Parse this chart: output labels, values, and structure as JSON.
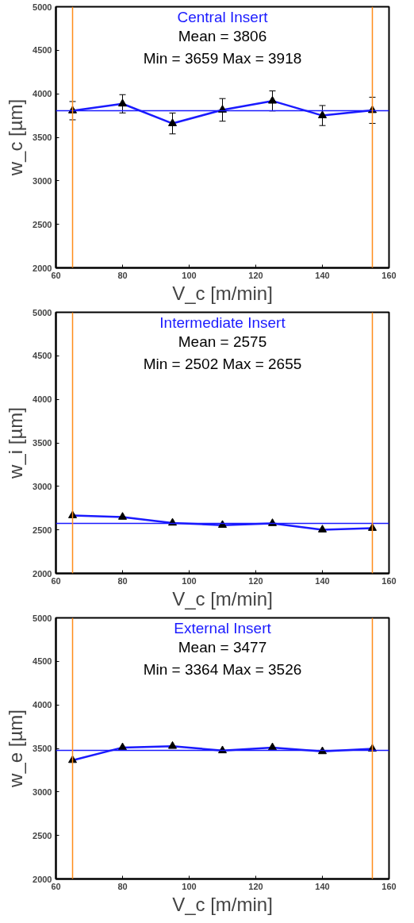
{
  "chart_data": [
    {
      "type": "line",
      "title": "Central Insert",
      "xlabel": "V_c [m/min]",
      "ylabel": "w_c [µm]",
      "annotations": [
        "Mean = 3806",
        "Min = 3659 Max = 3918"
      ],
      "x": [
        65,
        80,
        95,
        110,
        125,
        140,
        155
      ],
      "series": [
        {
          "color": "#1a1aff",
          "values": [
            3806,
            3885,
            3659,
            3815,
            3918,
            3750,
            3810
          ],
          "errors": [
            105,
            105,
            120,
            130,
            115,
            115,
            150
          ]
        }
      ],
      "ref_lines": [
        {
          "axis": "y",
          "value": 3806,
          "color": "#1a1aff"
        },
        {
          "axis": "x",
          "value": 65,
          "color": "#ff8c1a"
        },
        {
          "axis": "x",
          "value": 155,
          "color": "#ff8c1a"
        }
      ],
      "xlim": [
        60,
        160
      ],
      "xticks": [
        60,
        80,
        100,
        120,
        140,
        160
      ],
      "ylim": [
        2000,
        5000
      ],
      "yticks": [
        2000,
        2500,
        3000,
        3500,
        4000,
        4500,
        5000
      ],
      "marker": "triangle",
      "grid": false
    },
    {
      "type": "line",
      "title": "Intermediate Insert",
      "xlabel": "V_c [m/min]",
      "ylabel": "w_i [µm]",
      "annotations": [
        "Mean = 2575",
        "Min = 2502 Max = 2655"
      ],
      "x": [
        65,
        80,
        95,
        110,
        125,
        140,
        155
      ],
      "series": [
        {
          "color": "#1a1aff",
          "values": [
            2665,
            2648,
            2580,
            2555,
            2575,
            2502,
            2520
          ]
        }
      ],
      "ref_lines": [
        {
          "axis": "y",
          "value": 2575,
          "color": "#1a1aff"
        },
        {
          "axis": "x",
          "value": 65,
          "color": "#ff8c1a"
        },
        {
          "axis": "x",
          "value": 155,
          "color": "#ff8c1a"
        }
      ],
      "xlim": [
        60,
        160
      ],
      "xticks": [
        60,
        80,
        100,
        120,
        140,
        160
      ],
      "ylim": [
        2000,
        5000
      ],
      "yticks": [
        2000,
        2500,
        3000,
        3500,
        4000,
        4500,
        5000
      ],
      "marker": "triangle",
      "grid": false
    },
    {
      "type": "line",
      "title": "External Insert",
      "xlabel": "V_c [m/min]",
      "ylabel": "w_e [µm]",
      "annotations": [
        "Mean = 3477",
        "Min = 3364 Max = 3526"
      ],
      "x": [
        65,
        80,
        95,
        110,
        125,
        140,
        155
      ],
      "series": [
        {
          "color": "#1a1aff",
          "values": [
            3364,
            3510,
            3526,
            3475,
            3510,
            3465,
            3495
          ]
        }
      ],
      "ref_lines": [
        {
          "axis": "y",
          "value": 3477,
          "color": "#1a1aff"
        },
        {
          "axis": "x",
          "value": 65,
          "color": "#ff8c1a"
        },
        {
          "axis": "x",
          "value": 155,
          "color": "#ff8c1a"
        }
      ],
      "xlim": [
        60,
        160
      ],
      "xticks": [
        60,
        80,
        100,
        120,
        140,
        160
      ],
      "ylim": [
        2000,
        5000
      ],
      "yticks": [
        2000,
        2500,
        3000,
        3500,
        4000,
        4500,
        5000
      ],
      "marker": "triangle",
      "grid": false
    }
  ]
}
